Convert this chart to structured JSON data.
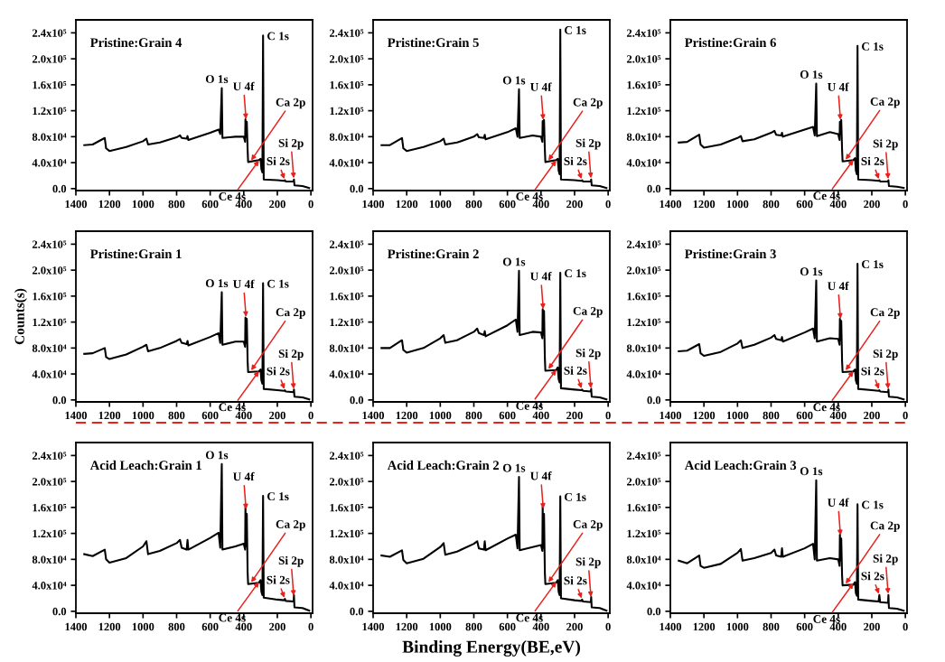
{
  "chart_data": [
    {
      "type": "line",
      "title": "Pristine:Grain 4",
      "x": [
        1350,
        1300,
        1228,
        1220,
        1200,
        1100,
        1000,
        980,
        970,
        900,
        800,
        780,
        770,
        740,
        735,
        730,
        600,
        550,
        540,
        531,
        527,
        450,
        400,
        392,
        390,
        386,
        382,
        377,
        374,
        310,
        300,
        295,
        289,
        285,
        281,
        200,
        160,
        155,
        150,
        103,
        101,
        98,
        50,
        10
      ],
      "series": [
        {
          "color": "#000000",
          "values": [
            67000,
            68000,
            78000,
            62000,
            58000,
            64000,
            73000,
            77000,
            68000,
            71000,
            79000,
            82000,
            78000,
            77000,
            81000,
            75000,
            86000,
            91000,
            84000,
            155000,
            78000,
            80000,
            80000,
            72000,
            107000,
            80000,
            103000,
            60000,
            41000,
            44000,
            46000,
            30000,
            25000,
            236000,
            14000,
            13000,
            12000,
            13000,
            11000,
            11000,
            14000,
            5000,
            4000,
            1000
          ]
        }
      ],
      "xlim": [
        1400,
        -10
      ],
      "ylim": [
        -3000,
        260000
      ],
      "xticks": [
        1400,
        1200,
        1000,
        800,
        600,
        400,
        200,
        0
      ],
      "yticks": [
        {
          "value": 0,
          "label": "0.0"
        },
        {
          "value": 40000,
          "label": "4.0x10⁴"
        },
        {
          "value": 80000,
          "label": "8.0x10⁴"
        },
        {
          "value": 120000,
          "label": "1.2x10⁵"
        },
        {
          "value": 160000,
          "label": "1.6x10⁵"
        },
        {
          "value": 200000,
          "label": "2.0x10⁵"
        },
        {
          "value": 240000,
          "label": "2.4x10⁵"
        }
      ],
      "annotations": [
        {
          "text": "O 1s",
          "x": 531,
          "y": 155000
        },
        {
          "text": "C 1s",
          "x": 285,
          "y": 236000
        },
        {
          "text": "U 4f",
          "x": 386,
          "y": 105000
        },
        {
          "text": "Ca 2p",
          "x": 360,
          "y": 42000
        },
        {
          "text": "Si 2s",
          "x": 155,
          "y": 13000
        },
        {
          "text": "Si 2p",
          "x": 102,
          "y": 14000
        },
        {
          "text": "Ce 4s",
          "x": 305,
          "y": 45000
        }
      ]
    },
    {
      "type": "line",
      "title": "Pristine:Grain 5",
      "x": [
        1350,
        1300,
        1228,
        1220,
        1200,
        1100,
        1000,
        980,
        970,
        900,
        800,
        780,
        770,
        740,
        735,
        730,
        600,
        550,
        540,
        531,
        527,
        450,
        400,
        392,
        390,
        386,
        382,
        377,
        374,
        310,
        300,
        295,
        289,
        285,
        281,
        200,
        160,
        155,
        150,
        103,
        101,
        98,
        50,
        10
      ],
      "series": [
        {
          "color": "#000000",
          "values": [
            67000,
            67000,
            78000,
            62000,
            58000,
            64000,
            73000,
            77000,
            68000,
            71000,
            80000,
            84000,
            79000,
            78000,
            83000,
            76000,
            87000,
            93000,
            80000,
            153000,
            78000,
            82000,
            80000,
            72000,
            104000,
            82000,
            106000,
            60000,
            41000,
            44000,
            46000,
            28000,
            22000,
            245000,
            14000,
            13000,
            12000,
            13000,
            11000,
            11000,
            14000,
            5000,
            4000,
            1000
          ]
        }
      ],
      "xlim": [
        1400,
        -10
      ],
      "ylim": [
        -3000,
        260000
      ],
      "xticks": [
        1400,
        1200,
        1000,
        800,
        600,
        400,
        200,
        0
      ],
      "yticks": [
        {
          "value": 0,
          "label": "0.0"
        },
        {
          "value": 40000,
          "label": "4.0x10⁴"
        },
        {
          "value": 80000,
          "label": "8.0x10⁴"
        },
        {
          "value": 120000,
          "label": "1.2x10⁵"
        },
        {
          "value": 160000,
          "label": "1.6x10⁵"
        },
        {
          "value": 200000,
          "label": "2.0x10⁵"
        },
        {
          "value": 240000,
          "label": "2.4x10⁵"
        }
      ],
      "annotations": [
        {
          "text": "O 1s",
          "x": 531,
          "y": 153000
        },
        {
          "text": "C 1s",
          "x": 285,
          "y": 245000
        },
        {
          "text": "U 4f",
          "x": 386,
          "y": 104000
        },
        {
          "text": "Ca 2p",
          "x": 360,
          "y": 42000
        },
        {
          "text": "Si 2s",
          "x": 155,
          "y": 13000
        },
        {
          "text": "Si 2p",
          "x": 102,
          "y": 14000
        },
        {
          "text": "Ce 4s",
          "x": 305,
          "y": 45000
        }
      ]
    },
    {
      "type": "line",
      "title": "Pristine:Grain 6",
      "x": [
        1350,
        1300,
        1228,
        1220,
        1200,
        1100,
        1000,
        980,
        970,
        900,
        800,
        780,
        770,
        740,
        735,
        730,
        600,
        550,
        540,
        531,
        527,
        450,
        400,
        392,
        390,
        386,
        382,
        377,
        374,
        310,
        300,
        295,
        289,
        285,
        281,
        200,
        160,
        155,
        150,
        103,
        101,
        98,
        50,
        10
      ],
      "series": [
        {
          "color": "#000000",
          "values": [
            71000,
            72000,
            83000,
            68000,
            63000,
            68000,
            78000,
            81000,
            73000,
            76000,
            86000,
            89000,
            83000,
            82000,
            86000,
            80000,
            91000,
            95000,
            82000,
            162000,
            81000,
            87000,
            84000,
            75000,
            103000,
            84000,
            106000,
            60000,
            42000,
            44000,
            47000,
            28000,
            22000,
            220000,
            14000,
            13000,
            12000,
            13000,
            11000,
            11000,
            13000,
            4000,
            3000,
            1000
          ]
        }
      ],
      "xlim": [
        1400,
        -10
      ],
      "ylim": [
        -3000,
        260000
      ],
      "xticks": [
        1400,
        1200,
        1000,
        800,
        600,
        400,
        200,
        0
      ],
      "yticks": [
        {
          "value": 0,
          "label": "0.0"
        },
        {
          "value": 40000,
          "label": "4.0x10⁴"
        },
        {
          "value": 80000,
          "label": "8.0x10⁴"
        },
        {
          "value": 120000,
          "label": "1.2x10⁵"
        },
        {
          "value": 160000,
          "label": "1.6x10⁵"
        },
        {
          "value": 200000,
          "label": "2.0x10⁵"
        },
        {
          "value": 240000,
          "label": "2.4x10⁵"
        }
      ],
      "annotations": [
        {
          "text": "O 1s",
          "x": 531,
          "y": 162000
        },
        {
          "text": "C 1s",
          "x": 285,
          "y": 220000
        },
        {
          "text": "U 4f",
          "x": 386,
          "y": 104000
        },
        {
          "text": "Ca 2p",
          "x": 360,
          "y": 43000
        },
        {
          "text": "Si 2s",
          "x": 155,
          "y": 13000
        },
        {
          "text": "Si 2p",
          "x": 102,
          "y": 13000
        },
        {
          "text": "Ce 4s",
          "x": 305,
          "y": 46000
        }
      ]
    },
    {
      "type": "line",
      "title": "Pristine:Grain 1",
      "ylabel": "Counts(s)",
      "x": [
        1350,
        1300,
        1228,
        1220,
        1200,
        1100,
        1000,
        980,
        970,
        900,
        800,
        780,
        770,
        740,
        735,
        730,
        600,
        550,
        540,
        531,
        527,
        450,
        400,
        392,
        390,
        386,
        382,
        377,
        374,
        310,
        300,
        295,
        289,
        285,
        281,
        200,
        160,
        155,
        150,
        103,
        101,
        98,
        50,
        10
      ],
      "series": [
        {
          "color": "#000000",
          "values": [
            71000,
            72000,
            80000,
            66000,
            63000,
            70000,
            82000,
            85000,
            75000,
            80000,
            91000,
            94000,
            88000,
            86000,
            91000,
            84000,
            97000,
            103000,
            88000,
            166000,
            85000,
            90000,
            90000,
            82000,
            127000,
            88000,
            125000,
            60000,
            43000,
            44000,
            47000,
            30000,
            25000,
            180000,
            17000,
            15000,
            14000,
            15000,
            13000,
            12000,
            16000,
            5000,
            4000,
            1000
          ]
        }
      ],
      "xlim": [
        1400,
        -10
      ],
      "ylim": [
        -3000,
        260000
      ],
      "xticks": [
        1400,
        1200,
        1000,
        800,
        600,
        400,
        200,
        0
      ],
      "yticks": [
        {
          "value": 0,
          "label": "0.0"
        },
        {
          "value": 40000,
          "label": "4.0x10⁴"
        },
        {
          "value": 80000,
          "label": "8.0x10⁴"
        },
        {
          "value": 120000,
          "label": "1.2x10⁵"
        },
        {
          "value": 160000,
          "label": "1.6x10⁵"
        },
        {
          "value": 200000,
          "label": "2.0x10⁵"
        },
        {
          "value": 240000,
          "label": "2.4x10⁵"
        }
      ],
      "annotations": [
        {
          "text": "O 1s",
          "x": 531,
          "y": 166000
        },
        {
          "text": "C 1s",
          "x": 285,
          "y": 180000
        },
        {
          "text": "U 4f",
          "x": 386,
          "y": 126000
        },
        {
          "text": "Ca 2p",
          "x": 360,
          "y": 44000
        },
        {
          "text": "Si 2s",
          "x": 155,
          "y": 15000
        },
        {
          "text": "Si 2p",
          "x": 102,
          "y": 15000
        },
        {
          "text": "Ce 4s",
          "x": 305,
          "y": 46000
        }
      ]
    },
    {
      "type": "line",
      "title": "Pristine:Grain 2",
      "x": [
        1350,
        1300,
        1228,
        1220,
        1200,
        1100,
        1000,
        980,
        970,
        900,
        800,
        780,
        770,
        740,
        735,
        730,
        600,
        550,
        540,
        531,
        527,
        450,
        400,
        392,
        390,
        386,
        382,
        377,
        374,
        310,
        300,
        295,
        289,
        285,
        281,
        200,
        160,
        155,
        150,
        103,
        101,
        98,
        50,
        10
      ],
      "series": [
        {
          "color": "#000000",
          "values": [
            80000,
            80000,
            92000,
            77000,
            73000,
            80000,
            95000,
            100000,
            88000,
            92000,
            105000,
            110000,
            103000,
            100000,
            106000,
            98000,
            115000,
            124000,
            105000,
            199000,
            100000,
            105000,
            104000,
            95000,
            140000,
            100000,
            137000,
            65000,
            45000,
            46000,
            50000,
            32000,
            27000,
            196000,
            18000,
            16000,
            15000,
            16000,
            14000,
            13000,
            17000,
            5000,
            4000,
            1000
          ]
        }
      ],
      "xlim": [
        1400,
        -10
      ],
      "ylim": [
        -3000,
        260000
      ],
      "xticks": [
        1400,
        1200,
        1000,
        800,
        600,
        400,
        200,
        0
      ],
      "yticks": [
        {
          "value": 0,
          "label": "0.0"
        },
        {
          "value": 40000,
          "label": "4.0x10⁴"
        },
        {
          "value": 80000,
          "label": "8.0x10⁴"
        },
        {
          "value": 120000,
          "label": "1.2x10⁵"
        },
        {
          "value": 160000,
          "label": "1.6x10⁵"
        },
        {
          "value": 200000,
          "label": "2.0x10⁵"
        },
        {
          "value": 240000,
          "label": "2.4x10⁵"
        }
      ],
      "annotations": [
        {
          "text": "O 1s",
          "x": 531,
          "y": 199000
        },
        {
          "text": "C 1s",
          "x": 285,
          "y": 196000
        },
        {
          "text": "U 4f",
          "x": 386,
          "y": 138000
        },
        {
          "text": "Ca 2p",
          "x": 360,
          "y": 46000
        },
        {
          "text": "Si 2s",
          "x": 155,
          "y": 16000
        },
        {
          "text": "Si 2p",
          "x": 102,
          "y": 16000
        },
        {
          "text": "Ce 4s",
          "x": 305,
          "y": 48000
        }
      ]
    },
    {
      "type": "line",
      "title": "Pristine:Grain 3",
      "x": [
        1350,
        1300,
        1228,
        1220,
        1200,
        1100,
        1000,
        980,
        970,
        900,
        800,
        780,
        770,
        740,
        735,
        730,
        600,
        550,
        540,
        531,
        527,
        450,
        400,
        392,
        390,
        386,
        382,
        377,
        374,
        310,
        300,
        295,
        289,
        285,
        281,
        200,
        160,
        155,
        150,
        103,
        101,
        98,
        50,
        10
      ],
      "series": [
        {
          "color": "#000000",
          "values": [
            75000,
            76000,
            86000,
            72000,
            68000,
            74000,
            87000,
            92000,
            80000,
            85000,
            96000,
            100000,
            94000,
            92000,
            97000,
            90000,
            104000,
            110000,
            95000,
            184000,
            90000,
            95000,
            94000,
            85000,
            125000,
            92000,
            122000,
            60000,
            43000,
            44000,
            47000,
            30000,
            25000,
            210000,
            17000,
            15000,
            14000,
            15000,
            13000,
            12000,
            16000,
            5000,
            4000,
            1000
          ]
        }
      ],
      "xlim": [
        1400,
        -10
      ],
      "ylim": [
        -3000,
        260000
      ],
      "xticks": [
        1400,
        1200,
        1000,
        800,
        600,
        400,
        200,
        0
      ],
      "yticks": [
        {
          "value": 0,
          "label": "0.0"
        },
        {
          "value": 40000,
          "label": "4.0x10⁴"
        },
        {
          "value": 80000,
          "label": "8.0x10⁴"
        },
        {
          "value": 120000,
          "label": "1.2x10⁵"
        },
        {
          "value": 160000,
          "label": "1.6x10⁵"
        },
        {
          "value": 200000,
          "label": "2.0x10⁵"
        },
        {
          "value": 240000,
          "label": "2.4x10⁵"
        }
      ],
      "annotations": [
        {
          "text": "O 1s",
          "x": 531,
          "y": 184000
        },
        {
          "text": "C 1s",
          "x": 285,
          "y": 210000
        },
        {
          "text": "U 4f",
          "x": 386,
          "y": 123000
        },
        {
          "text": "Ca 2p",
          "x": 360,
          "y": 44000
        },
        {
          "text": "Si 2s",
          "x": 155,
          "y": 15000
        },
        {
          "text": "Si 2p",
          "x": 102,
          "y": 15000
        },
        {
          "text": "Ce 4s",
          "x": 305,
          "y": 46000
        }
      ]
    },
    {
      "type": "line",
      "title": "Acid Leach:Grain 1",
      "x": [
        1350,
        1300,
        1228,
        1220,
        1200,
        1100,
        1000,
        980,
        970,
        900,
        800,
        780,
        770,
        740,
        735,
        730,
        600,
        550,
        540,
        531,
        527,
        450,
        400,
        392,
        390,
        386,
        382,
        377,
        374,
        310,
        300,
        295,
        289,
        285,
        281,
        200,
        160,
        155,
        150,
        103,
        101,
        98,
        50,
        10
      ],
      "series": [
        {
          "color": "#000000",
          "values": [
            88000,
            85000,
            95000,
            80000,
            75000,
            82000,
            100000,
            108000,
            88000,
            93000,
            105000,
            110000,
            98000,
            95000,
            110000,
            95000,
            113000,
            121000,
            98000,
            227000,
            95000,
            100000,
            104000,
            95000,
            160000,
            100000,
            150000,
            60000,
            42000,
            44000,
            48000,
            30000,
            25000,
            178000,
            21000,
            18000,
            17000,
            19000,
            16000,
            15000,
            25000,
            6000,
            5000,
            1000
          ]
        }
      ],
      "xlim": [
        1400,
        -10
      ],
      "ylim": [
        -3000,
        260000
      ],
      "xticks": [
        1400,
        1200,
        1000,
        800,
        600,
        400,
        200,
        0
      ],
      "yticks": [
        {
          "value": 0,
          "label": "0.0"
        },
        {
          "value": 40000,
          "label": "4.0x10⁴"
        },
        {
          "value": 80000,
          "label": "8.0x10⁴"
        },
        {
          "value": 120000,
          "label": "1.2x10⁵"
        },
        {
          "value": 160000,
          "label": "1.6x10⁵"
        },
        {
          "value": 200000,
          "label": "2.0x10⁵"
        },
        {
          "value": 240000,
          "label": "2.4x10⁵"
        }
      ],
      "annotations": [
        {
          "text": "O 1s",
          "x": 531,
          "y": 227000
        },
        {
          "text": "C 1s",
          "x": 285,
          "y": 178000
        },
        {
          "text": "U 4f",
          "x": 386,
          "y": 155000
        },
        {
          "text": "Ca 2p",
          "x": 360,
          "y": 43000
        },
        {
          "text": "Si 2s",
          "x": 155,
          "y": 19000
        },
        {
          "text": "Si 2p",
          "x": 102,
          "y": 22000
        },
        {
          "text": "Ce 4s",
          "x": 305,
          "y": 47000
        }
      ]
    },
    {
      "type": "line",
      "title": "Acid Leach:Grain 2",
      "xlabel": "Binding Energy(BE,eV)",
      "x": [
        1350,
        1300,
        1228,
        1220,
        1200,
        1100,
        1000,
        980,
        970,
        900,
        800,
        780,
        770,
        740,
        735,
        730,
        600,
        550,
        540,
        531,
        527,
        450,
        400,
        392,
        390,
        386,
        382,
        377,
        374,
        310,
        300,
        295,
        289,
        285,
        281,
        200,
        160,
        155,
        150,
        103,
        101,
        98,
        50,
        10
      ],
      "series": [
        {
          "color": "#000000",
          "values": [
            86000,
            84000,
            94000,
            79000,
            74000,
            81000,
            99000,
            105000,
            87000,
            92000,
            104000,
            108000,
            97000,
            95000,
            108000,
            94000,
            112000,
            118000,
            97000,
            207000,
            94000,
            99000,
            102000,
            93000,
            162000,
            98000,
            150000,
            60000,
            42000,
            44000,
            48000,
            30000,
            25000,
            177000,
            20000,
            17000,
            16000,
            18000,
            15000,
            14000,
            22000,
            6000,
            5000,
            1000
          ]
        }
      ],
      "xlim": [
        1400,
        -10
      ],
      "ylim": [
        -3000,
        260000
      ],
      "xticks": [
        1400,
        1200,
        1000,
        800,
        600,
        400,
        200,
        0
      ],
      "yticks": [
        {
          "value": 0,
          "label": "0.0"
        },
        {
          "value": 40000,
          "label": "4.0x10⁴"
        },
        {
          "value": 80000,
          "label": "8.0x10⁴"
        },
        {
          "value": 120000,
          "label": "1.2x10⁵"
        },
        {
          "value": 160000,
          "label": "1.6x10⁵"
        },
        {
          "value": 200000,
          "label": "2.0x10⁵"
        },
        {
          "value": 240000,
          "label": "2.4x10⁵"
        }
      ],
      "annotations": [
        {
          "text": "O 1s",
          "x": 531,
          "y": 207000
        },
        {
          "text": "C 1s",
          "x": 285,
          "y": 177000
        },
        {
          "text": "U 4f",
          "x": 386,
          "y": 156000
        },
        {
          "text": "Ca 2p",
          "x": 360,
          "y": 43000
        },
        {
          "text": "Si 2s",
          "x": 155,
          "y": 18000
        },
        {
          "text": "Si 2p",
          "x": 102,
          "y": 20000
        },
        {
          "text": "Ce 4s",
          "x": 305,
          "y": 47000
        }
      ]
    },
    {
      "type": "line",
      "title": "Acid Leach:Grain 3",
      "x": [
        1350,
        1300,
        1228,
        1220,
        1200,
        1100,
        1000,
        980,
        970,
        900,
        800,
        780,
        770,
        740,
        735,
        730,
        600,
        550,
        540,
        531,
        527,
        450,
        400,
        392,
        390,
        386,
        382,
        377,
        374,
        310,
        300,
        295,
        289,
        285,
        281,
        200,
        160,
        155,
        150,
        103,
        101,
        98,
        50,
        10
      ],
      "series": [
        {
          "color": "#000000",
          "values": [
            78000,
            74000,
            86000,
            70000,
            67000,
            73000,
            90000,
            96000,
            78000,
            82000,
            90000,
            95000,
            86000,
            84000,
            97000,
            84000,
            97000,
            104000,
            80000,
            202000,
            78000,
            82000,
            80000,
            70000,
            118000,
            78000,
            112000,
            55000,
            40000,
            41000,
            45000,
            28000,
            24000,
            165000,
            18000,
            16000,
            15000,
            25000,
            14000,
            13000,
            25000,
            5000,
            4000,
            1000
          ]
        }
      ],
      "xlim": [
        1400,
        -10
      ],
      "ylim": [
        -3000,
        260000
      ],
      "xticks": [
        1400,
        1200,
        1000,
        800,
        600,
        400,
        200,
        0
      ],
      "yticks": [
        {
          "value": 0,
          "label": "0.0"
        },
        {
          "value": 40000,
          "label": "4.0x10⁴"
        },
        {
          "value": 80000,
          "label": "8.0x10⁴"
        },
        {
          "value": 120000,
          "label": "1.2x10⁵"
        },
        {
          "value": 160000,
          "label": "1.6x10⁵"
        },
        {
          "value": 200000,
          "label": "2.0x10⁵"
        },
        {
          "value": 240000,
          "label": "2.4x10⁵"
        }
      ],
      "annotations": [
        {
          "text": "O 1s",
          "x": 531,
          "y": 202000
        },
        {
          "text": "C 1s",
          "x": 285,
          "y": 165000
        },
        {
          "text": "U 4f",
          "x": 386,
          "y": 115000
        },
        {
          "text": "Ca 2p",
          "x": 360,
          "y": 41000
        },
        {
          "text": "Si 2s",
          "x": 155,
          "y": 25000
        },
        {
          "text": "Si 2p",
          "x": 102,
          "y": 25000
        },
        {
          "text": "Ce 4s",
          "x": 305,
          "y": 45000
        }
      ]
    }
  ]
}
